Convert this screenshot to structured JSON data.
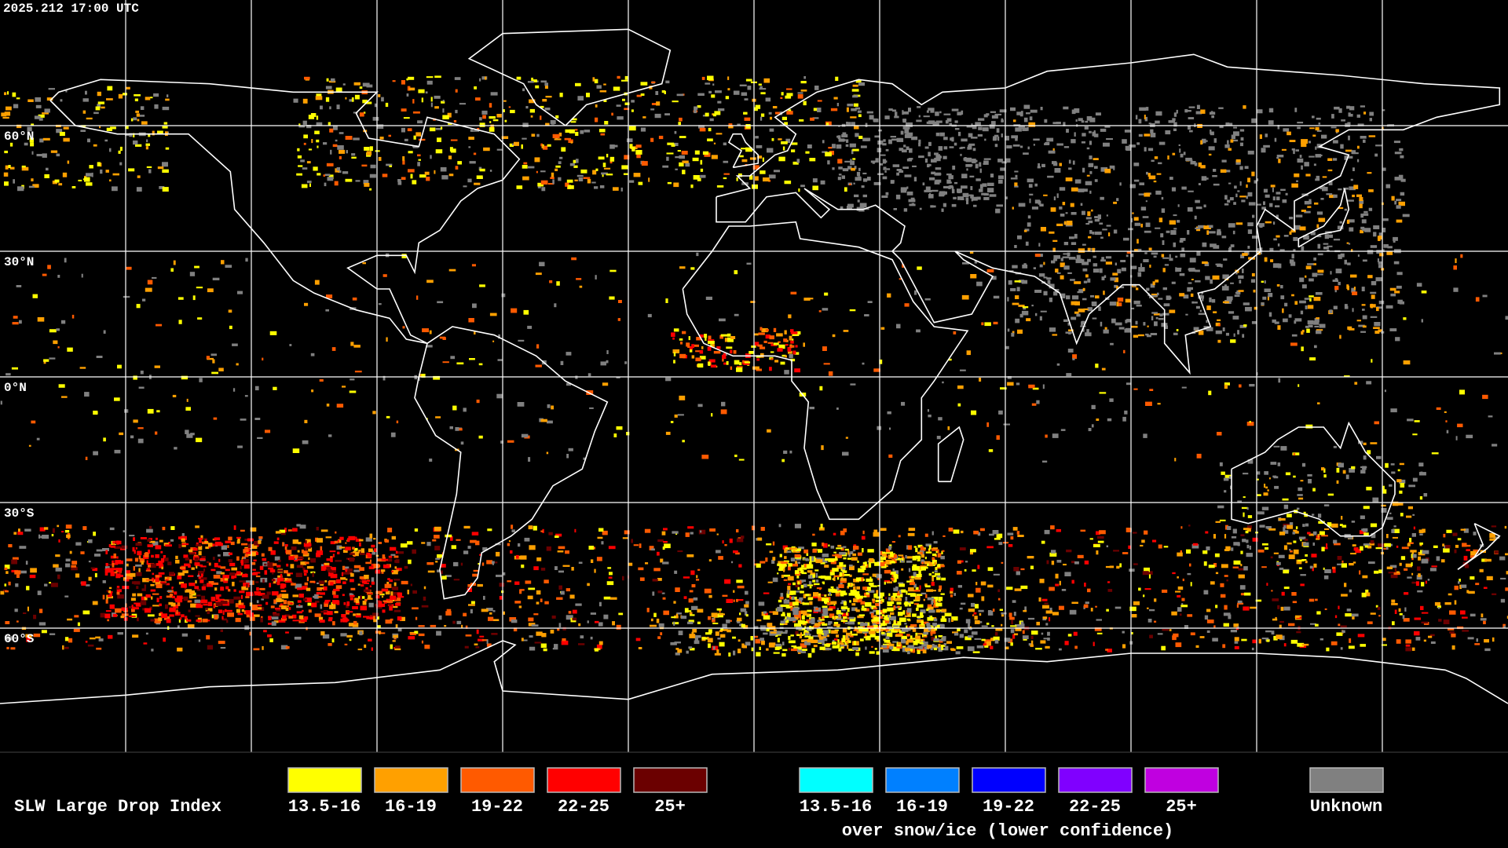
{
  "header": {
    "timestamp": "2025.212 17:00 UTC"
  },
  "map": {
    "latitude_labels": [
      "60°N",
      "30°N",
      "0°N",
      "30°S",
      "60°S"
    ]
  },
  "legend": {
    "title": "SLW Large Drop Index",
    "groups": [
      {
        "items": [
          {
            "label": "13.5-16",
            "color": "#ffff00"
          },
          {
            "label": "16-19",
            "color": "#ffa000"
          },
          {
            "label": "19-22",
            "color": "#ff5a00"
          },
          {
            "label": "22-25",
            "color": "#ff0000"
          },
          {
            "label": "25+",
            "color": "#6b0000"
          }
        ]
      },
      {
        "items": [
          {
            "label": "13.5-16",
            "color": "#00ffff"
          },
          {
            "label": "16-19",
            "color": "#0080ff"
          },
          {
            "label": "19-22",
            "color": "#0000ff"
          },
          {
            "label": "22-25",
            "color": "#8000ff"
          },
          {
            "label": "25+",
            "color": "#c000e0"
          }
        ],
        "note": "over snow/ice (lower confidence)"
      },
      {
        "items": [
          {
            "label": "Unknown",
            "color": "#808080"
          }
        ]
      }
    ]
  }
}
